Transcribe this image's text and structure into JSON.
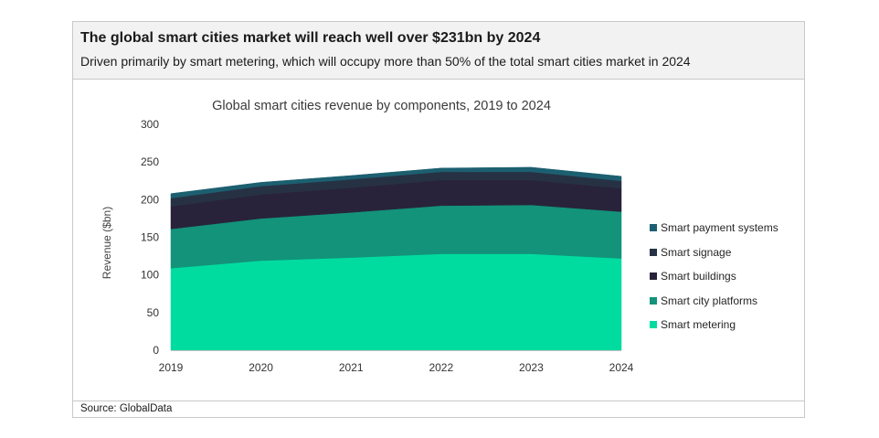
{
  "header": {
    "headline": "The global smart cities market will reach well over $231bn by 2024",
    "subheadline": "Driven primarily by smart metering, which will occupy more than 50% of the total smart cities market in 2024"
  },
  "footer": {
    "source": "Source: GlobalData"
  },
  "chart_data": {
    "type": "area",
    "stacked": true,
    "title": "Global smart cities revenue by components, 2019 to 2024",
    "xlabel": "",
    "ylabel": "Revenue ($bn)",
    "categories": [
      "2019",
      "2020",
      "2021",
      "2022",
      "2023",
      "2024"
    ],
    "ylim": [
      0,
      300
    ],
    "yticks": [
      0,
      50,
      100,
      150,
      200,
      250,
      300
    ],
    "grid": false,
    "legend_position": "right",
    "series": [
      {
        "name": "Smart metering",
        "color": "#00dca0",
        "values": [
          109,
          119,
          123,
          128,
          128,
          122
        ]
      },
      {
        "name": "Smart city platforms",
        "color": "#12937a",
        "values": [
          52,
          56,
          60,
          64,
          65,
          62
        ]
      },
      {
        "name": "Smart buildings",
        "color": "#28233a",
        "values": [
          30,
          32,
          33,
          34,
          33,
          31
        ]
      },
      {
        "name": "Smart signage",
        "color": "#263244",
        "values": [
          11,
          11,
          11,
          11,
          11,
          10
        ]
      },
      {
        "name": "Smart payment systems",
        "color": "#1c5f70",
        "values": [
          6,
          5,
          5,
          5,
          6,
          6
        ]
      }
    ],
    "legend_order": [
      "Smart payment systems",
      "Smart signage",
      "Smart buildings",
      "Smart city platforms",
      "Smart metering"
    ]
  }
}
